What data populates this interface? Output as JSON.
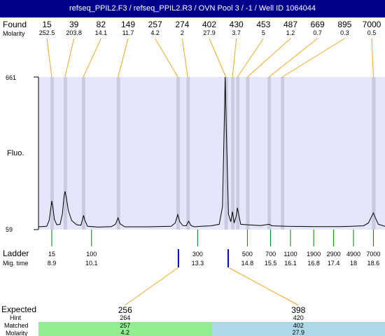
{
  "window": {
    "title": "refseq_PPIL2.F3 / refseq_PPIL2.R3 / OVN Pool 3 / -1 / Well ID 1064044"
  },
  "labels": {
    "found": "Found",
    "molarity": "Molarity",
    "fluo": "Fluo.",
    "ladder": "Ladder",
    "mig_time": "Mig. time",
    "expected": "Expected",
    "hint": "Hint",
    "matched": "Matched",
    "molarity_bottom": "Molarity"
  },
  "chart_data": {
    "type": "line",
    "title": "refseq_PPIL2.F3 / refseq_PPIL2.R3 / OVN Pool 3 / -1 / Well ID 1064044",
    "ylabel": "Fluo.",
    "xlabel": "Mig. time",
    "ylim": [
      59,
      661
    ],
    "ytick_labels": [
      "661",
      "59"
    ],
    "found_peaks": [
      {
        "size": "15",
        "molarity": "252.5",
        "time": 8.9
      },
      {
        "size": "39",
        "molarity": "203.8",
        "time": 9.3
      },
      {
        "size": "82",
        "molarity": "14.1",
        "time": 9.85
      },
      {
        "size": "149",
        "molarity": "11.7",
        "time": 10.9
      },
      {
        "size": "257",
        "molarity": "4.2",
        "time": 12.7
      },
      {
        "size": "274",
        "molarity": "2",
        "time": 13.0
      },
      {
        "size": "402",
        "molarity": "27.9",
        "time": 14.15
      },
      {
        "size": "430",
        "molarity": "3.7",
        "time": 14.35
      },
      {
        "size": "453",
        "molarity": "5",
        "time": 14.5
      },
      {
        "size": "487",
        "molarity": "1.2",
        "time": 14.8
      },
      {
        "size": "669",
        "molarity": "0.7",
        "time": 15.45
      },
      {
        "size": "895",
        "molarity": "0.3",
        "time": 15.85
      },
      {
        "size": "7000",
        "molarity": "0.5",
        "time": 18.6
      }
    ],
    "ladder": [
      {
        "size": "15",
        "time": "8.9"
      },
      {
        "size": "100",
        "time": "10.1"
      },
      {
        "size": "300",
        "time": "13.3"
      },
      {
        "size": "500",
        "time": "14.8"
      },
      {
        "size": "700",
        "time": "15.5"
      },
      {
        "size": "1100",
        "time": "16.1"
      },
      {
        "size": "1900",
        "time": "16.8"
      },
      {
        "size": "2900",
        "time": "17.4"
      },
      {
        "size": "4900",
        "time": "18"
      },
      {
        "size": "7000",
        "time": "18.6"
      }
    ],
    "expected": [
      {
        "size": "256",
        "time": 12.72,
        "hint": "264",
        "matched": "257",
        "molarity": "4.2",
        "color": "#90ee90"
      },
      {
        "size": "398",
        "time": 14.22,
        "hint": "420",
        "matched": "402",
        "molarity": "27.9",
        "color": "#add8e6"
      }
    ],
    "trace": [
      [
        8.5,
        70
      ],
      [
        8.75,
        72
      ],
      [
        8.82,
        95
      ],
      [
        8.87,
        140
      ],
      [
        8.9,
        172
      ],
      [
        8.93,
        150
      ],
      [
        8.98,
        100
      ],
      [
        9.05,
        78
      ],
      [
        9.15,
        80
      ],
      [
        9.22,
        120
      ],
      [
        9.27,
        190
      ],
      [
        9.3,
        210
      ],
      [
        9.34,
        185
      ],
      [
        9.4,
        135
      ],
      [
        9.5,
        95
      ],
      [
        9.65,
        78
      ],
      [
        9.78,
        76
      ],
      [
        9.83,
        100
      ],
      [
        9.86,
        115
      ],
      [
        9.9,
        95
      ],
      [
        9.98,
        72
      ],
      [
        10.3,
        69
      ],
      [
        10.7,
        71
      ],
      [
        10.82,
        80
      ],
      [
        10.9,
        105
      ],
      [
        10.96,
        82
      ],
      [
        11.1,
        70
      ],
      [
        11.8,
        70
      ],
      [
        12.5,
        72
      ],
      [
        12.62,
        85
      ],
      [
        12.7,
        118
      ],
      [
        12.76,
        90
      ],
      [
        12.85,
        75
      ],
      [
        12.95,
        74
      ],
      [
        13.03,
        92
      ],
      [
        13.1,
        75
      ],
      [
        13.2,
        70
      ],
      [
        13.4,
        72
      ],
      [
        13.7,
        74
      ],
      [
        13.95,
        80
      ],
      [
        14.05,
        150
      ],
      [
        14.1,
        470
      ],
      [
        14.13,
        661
      ],
      [
        14.17,
        420
      ],
      [
        14.23,
        120
      ],
      [
        14.3,
        90
      ],
      [
        14.35,
        130
      ],
      [
        14.4,
        85
      ],
      [
        14.46,
        110
      ],
      [
        14.5,
        145
      ],
      [
        14.55,
        110
      ],
      [
        14.6,
        80
      ],
      [
        14.8,
        78
      ],
      [
        15.2,
        75
      ],
      [
        15.45,
        80
      ],
      [
        15.55,
        74
      ],
      [
        16.0,
        72
      ],
      [
        16.8,
        71
      ],
      [
        17.6,
        71
      ],
      [
        18.3,
        74
      ],
      [
        18.45,
        85
      ],
      [
        18.55,
        112
      ],
      [
        18.6,
        125
      ],
      [
        18.66,
        105
      ],
      [
        18.75,
        80
      ],
      [
        18.95,
        72
      ]
    ],
    "colors": {
      "title_bar": "#00008b",
      "plot_background": "#e6e6fa",
      "peak_band": "#cbcbdf",
      "found_connector": "#f5a623",
      "ladder_tick": "#008000",
      "expected_marker": "#0000cd",
      "matched_green": "#90ee90",
      "matched_blue": "#add8e6"
    }
  }
}
